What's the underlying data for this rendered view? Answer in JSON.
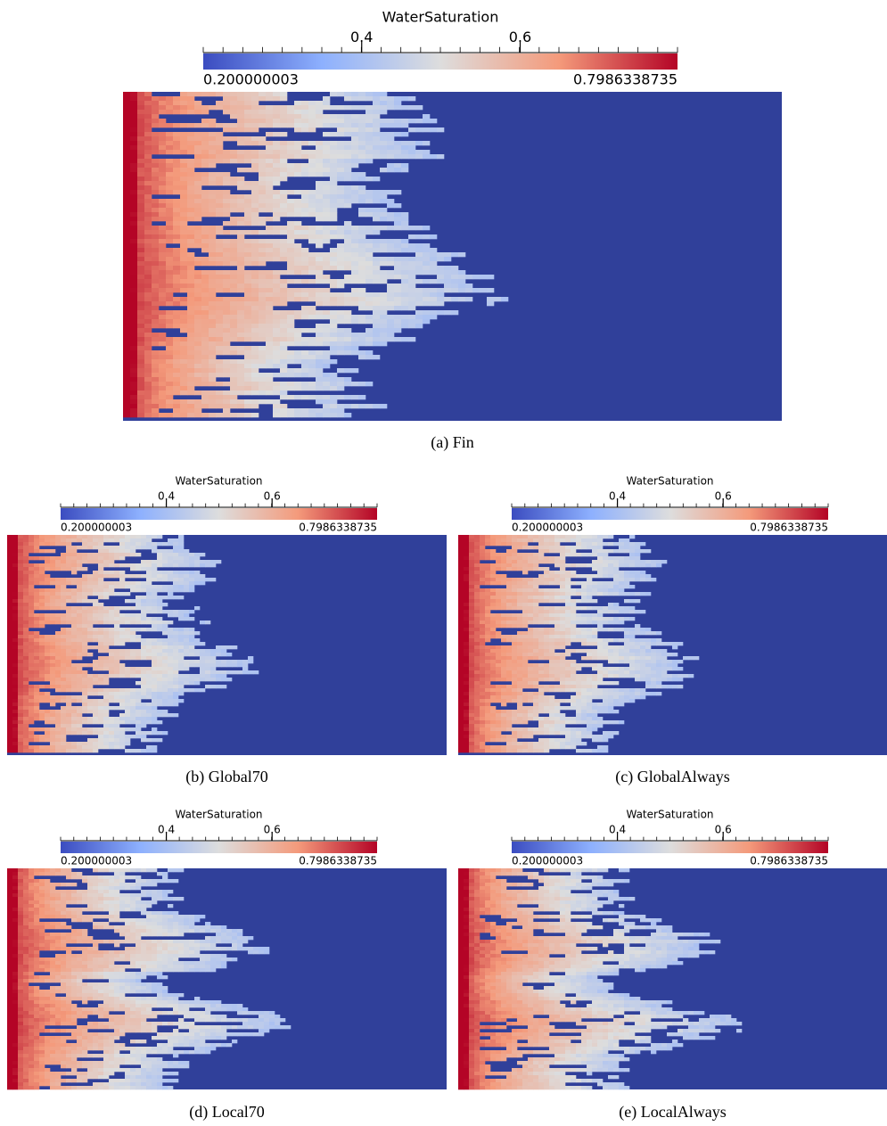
{
  "panels": [
    {
      "caption": "(a) Fin",
      "colorbar": {
        "title": "WaterSaturation",
        "min": 0.200000003,
        "max": 0.7986338735,
        "ticks": [
          0.4,
          0.6
        ]
      }
    },
    {
      "caption": "(b) Global70",
      "colorbar": {
        "title": "WaterSaturation",
        "min": 0.200000003,
        "max": 0.7986338735,
        "ticks": [
          0.4,
          0.6
        ]
      }
    },
    {
      "caption": "(c) GlobalAlways",
      "colorbar": {
        "title": "WaterSaturation",
        "min": 0.200000003,
        "max": 0.7986338735,
        "ticks": [
          0.4,
          0.6
        ]
      }
    },
    {
      "caption": "(d) Local70",
      "colorbar": {
        "title": "WaterSaturation",
        "min": 0.200000003,
        "max": 0.7986338735,
        "ticks": [
          0.4,
          0.6
        ]
      }
    },
    {
      "caption": "(e) LocalAlways",
      "colorbar": {
        "title": "WaterSaturation",
        "min": 0.200000003,
        "max": 0.7986338735,
        "ticks": [
          0.4,
          0.6
        ]
      }
    }
  ]
}
